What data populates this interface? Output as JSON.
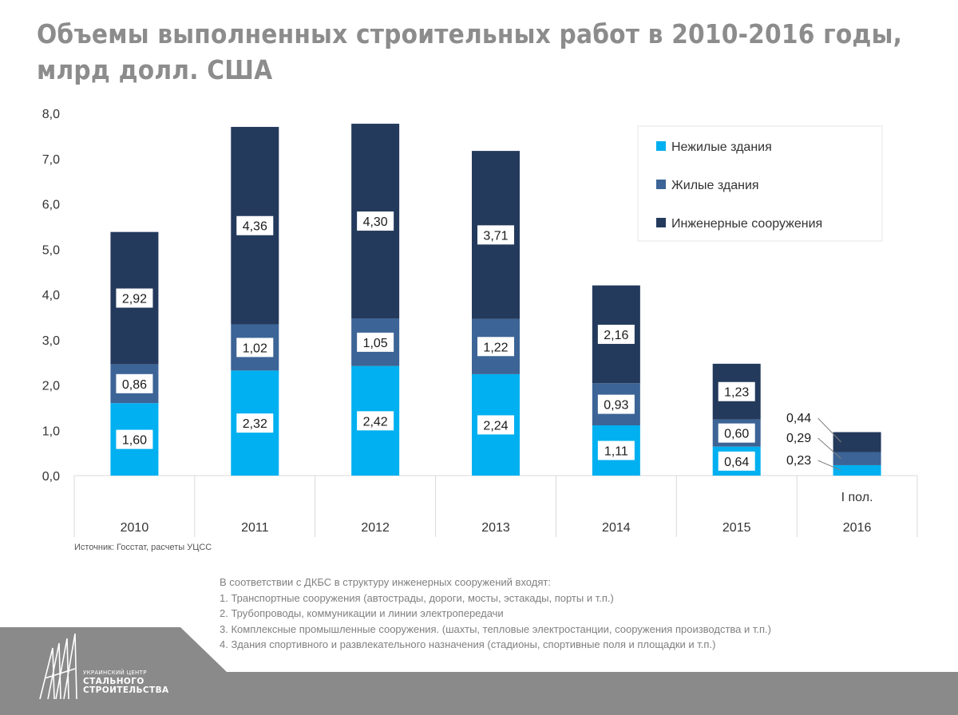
{
  "title": {
    "line1": "Объемы выполненных строительных работ в 2010-2016 годы,",
    "line2": "млрд долл. США"
  },
  "source": "Источник: Госстат, расчеты УЦСС",
  "notes": [
    "В соответствии с ДКБС в структуру инженерных сооружений входят:",
    "1. Транспортные сооружения (автострады, дороги, мосты, эстакады, порты и т.п.)",
    "2. Трубопроводы, коммуникации и линии электропередачи",
    "3. Комплексные промышленные сооружения. (шахты, тепловые электростанции, сооружения  производства и т.п.)",
    "4. Здания спортивного и развлекательного назначения (стадионы, спортивные поля и площадки и т.п.)"
  ],
  "logo": {
    "line1": "УКРАИНСКИЙ ЦЕНТР",
    "line2": "СТАЛЬНОГО",
    "line3": "СТРОИТЕЛЬСТВА"
  },
  "chart_data": {
    "type": "bar",
    "stacked": true,
    "categories": [
      "2010",
      "2011",
      "2012",
      "2013",
      "2014",
      "2015",
      "2016"
    ],
    "category_sublabels": [
      "",
      "",
      "",
      "",
      "",
      "",
      "I пол."
    ],
    "ylim": [
      0,
      8
    ],
    "yticks": [
      "0,0",
      "1,0",
      "2,0",
      "3,0",
      "4,0",
      "5,0",
      "6,0",
      "7,0",
      "8,0"
    ],
    "grid": false,
    "legend_position": "top-right",
    "series": [
      {
        "name": "Нежилые здания",
        "color": "#00b0f0",
        "values": [
          1.6,
          2.32,
          2.42,
          2.24,
          1.11,
          0.64,
          0.23
        ],
        "labels": [
          "1,60",
          "2,32",
          "2,42",
          "2,24",
          "1,11",
          "0,64",
          "0,23"
        ]
      },
      {
        "name": "Жилые здания",
        "color": "#3c6496",
        "values": [
          0.86,
          1.02,
          1.05,
          1.22,
          0.93,
          0.6,
          0.29
        ],
        "labels": [
          "0,86",
          "1,02",
          "1,05",
          "1,22",
          "0,93",
          "0,60",
          "0,29"
        ]
      },
      {
        "name": "Инженерные сооружения",
        "color": "#243a5c",
        "values": [
          2.92,
          4.36,
          4.3,
          3.71,
          2.16,
          1.23,
          0.44
        ],
        "labels": [
          "2,92",
          "4,36",
          "4,30",
          "3,71",
          "2,16",
          "1,23",
          "0,44"
        ]
      }
    ]
  },
  "colors": {
    "title": "#8c8c8c",
    "footer": "#8a8a8a"
  }
}
